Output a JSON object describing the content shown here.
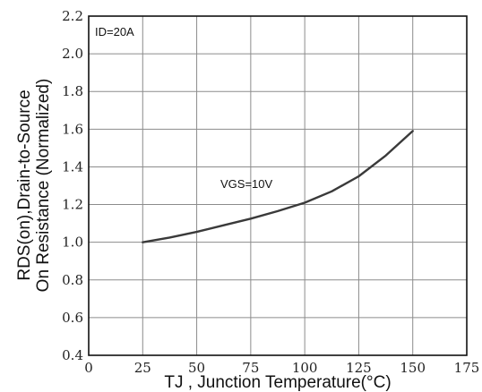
{
  "chart_data": {
    "type": "line",
    "title": "",
    "xlabel": "TJ , Junction Temperature(°C)",
    "ylabel_lines": [
      "RDS(on),Drain-to-Source",
      "On Resistance (Normalized)"
    ],
    "xlim": [
      0,
      175
    ],
    "ylim": [
      0.4,
      2.2
    ],
    "x_ticks": [
      "0",
      "25",
      "50",
      "75",
      "100",
      "125",
      "150",
      "175"
    ],
    "y_ticks": [
      "0.4",
      "0.6",
      "0.8",
      "1.0",
      "1.2",
      "1.4",
      "1.6",
      "1.8",
      "2.0",
      "2.2"
    ],
    "grid": true,
    "annotations": [
      "ID=20A",
      "VGS=10V"
    ],
    "series": [
      {
        "x": [
          25,
          37.5,
          50,
          62.5,
          75,
          87.5,
          100,
          112.5,
          125,
          137.5,
          150
        ],
        "y": [
          1.0,
          1.025,
          1.055,
          1.09,
          1.125,
          1.165,
          1.21,
          1.27,
          1.35,
          1.46,
          1.59
        ]
      }
    ],
    "line_color": "#3a3a3a"
  }
}
